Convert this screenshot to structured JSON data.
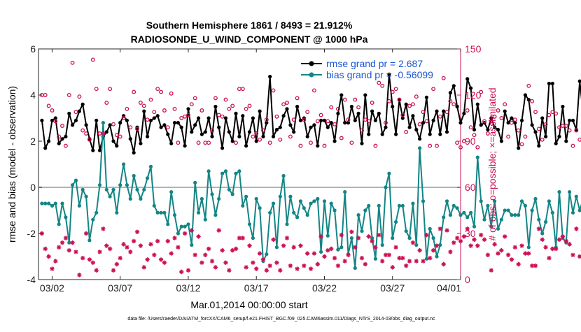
{
  "chart_data": {
    "type": "line",
    "title": "Southern Hemisphere 1861 / 8493 = 21.912%",
    "subtitle": "RADIOSONDE_U_WIND_COMPONENT @ 1000 hPa",
    "xlabel": "Mar.01,2014 00:00:00 start",
    "ylabel": "rmse and bias (model - observation)",
    "ylabel_right": "# of obs: o=possible; ×=assimilated",
    "xlim": [
      1,
      32
    ],
    "ylim": [
      -4,
      6
    ],
    "ylim_right": [
      0,
      150
    ],
    "x_ticks": [
      2,
      7,
      12,
      17,
      22,
      27,
      32
    ],
    "x_tick_labels": [
      "03/02",
      "03/07",
      "03/12",
      "03/17",
      "03/22",
      "03/27",
      "04/01"
    ],
    "y_ticks": [
      -4,
      -2,
      0,
      2,
      4,
      6
    ],
    "y_tick_labels": [
      "-4",
      "-2",
      "0",
      "2",
      "4",
      "6"
    ],
    "y_ticks_right": [
      0,
      30,
      60,
      90,
      120,
      150
    ],
    "y_tick_labels_right": [
      "0",
      "30",
      "60",
      "90",
      "120",
      "150"
    ],
    "zero_line": 0,
    "footnote": "data file: /Users/raeder/DAI/ATM_forcXX/CAM6_setup/f.e21.FHIST_BGC.f09_025.CAM6assim.011/Diags_NTrS_2014-03/obs_diag_output.nc",
    "x_start": 1.25,
    "x_step": 0.25,
    "series": [
      {
        "name": "rmse",
        "legend": "rmse grand pr = 2.687",
        "color": "#000000",
        "marker": "dot",
        "axis": "left",
        "values": [
          2.9,
          1.7,
          2.0,
          2.9,
          3.0,
          1.9,
          2.1,
          2.2,
          3.2,
          2.7,
          2.9,
          3.3,
          3.6,
          2.7,
          2.1,
          1.6,
          2.9,
          1.6,
          2.2,
          2.4,
          2.7,
          2.0,
          1.8,
          2.8,
          3.1,
          2.9,
          2.1,
          1.5,
          2.6,
          1.9,
          3.3,
          2.2,
          2.9,
          3.0,
          3.1,
          2.6,
          2.7,
          2.3,
          1.9,
          2.8,
          2.8,
          2.6,
          1.8,
          3.4,
          2.4,
          2.7,
          3.0,
          2.3,
          2.4,
          3.0,
          2.2,
          3.5,
          2.6,
          1.7,
          3.0,
          2.4,
          2.0,
          3.2,
          2.2,
          3.1,
          1.8,
          2.4,
          3.0,
          2.0,
          3.3,
          2.2,
          2.8,
          4.8,
          2.2,
          2.5,
          2.6,
          3.1,
          3.4,
          2.7,
          2.4,
          3.5,
          2.9,
          3.0,
          2.2,
          2.6,
          2.7,
          1.8,
          2.9,
          2.9,
          2.6,
          2.8,
          2.0,
          3.2,
          4.0,
          2.8,
          2.8,
          3.5,
          2.9,
          3.2,
          1.9,
          4.0,
          2.3,
          3.3,
          2.9,
          3.2,
          2.3,
          2.6,
          4.9,
          3.5,
          2.3,
          3.8,
          3.0,
          3.6,
          2.6,
          3.1,
          2.5,
          2.1,
          2.8,
          3.9,
          2.3,
          2.9,
          3.3,
          2.3,
          3.3,
          2.4,
          4.1,
          4.4,
          3.5,
          2.8,
          3.2,
          4.7,
          4.3,
          2.5,
          3.6,
          2.7,
          2.8,
          2.5,
          3.0,
          2.6,
          2.5,
          2.0,
          3.3,
          2.8,
          3.0,
          2.8,
          1.7,
          2.9,
          4.0,
          3.8,
          2.7,
          2.4,
          1.8,
          3.0,
          2.2,
          4.5,
          4.5,
          1.9,
          2.2,
          3.5,
          2.0,
          2.9,
          2.9,
          2.5,
          4.6,
          3.2,
          2.3,
          3.5,
          2.6,
          1.6,
          3.0,
          2.1,
          2.3,
          2.8,
          2.4,
          3.0,
          1.8,
          1.6,
          2.8,
          5.8
        ]
      },
      {
        "name": "bias",
        "legend": "bias grand pr = -0.56099",
        "color": "#138585",
        "marker": "dot",
        "axis": "left",
        "values": [
          -0.7,
          -0.7,
          -0.7,
          -0.8,
          -0.7,
          -1.6,
          -0.7,
          -1.3,
          -2.4,
          0.1,
          0.3,
          -0.8,
          -0.1,
          -0.4,
          -2.3,
          -1.4,
          -1.1,
          0.1,
          2.8,
          -0.1,
          -0.4,
          -0.1,
          -1.1,
          0.1,
          1.0,
          0.1,
          -0.5,
          0.5,
          -0.1,
          -0.5,
          -0.1,
          0.4,
          0.9,
          -0.8,
          -1.1,
          -1.1,
          -1.1,
          -1.6,
          -0.2,
          -1.2,
          -2.0,
          -1.7,
          -1.7,
          -1.6,
          -2.5,
          0.2,
          -1.1,
          -0.5,
          -1.4,
          0.7,
          -0.3,
          -1.2,
          -0.5,
          0.6,
          0.7,
          -0.1,
          -0.3,
          0.6,
          0.7,
          -0.8,
          -0.4,
          -1.6,
          -2.2,
          -0.5,
          -0.9,
          -3.2,
          -2.9,
          -1.1,
          -0.7,
          -2.6,
          -0.4,
          0.5,
          -1.6,
          -0.4,
          -1.1,
          -1.3,
          -0.6,
          -0.9,
          -1.2,
          -0.7,
          -0.6,
          -0.5,
          -2.8,
          -0.6,
          -2.1,
          -0.7,
          -1.0,
          -2.7,
          -2.6,
          -0.2,
          -2.9,
          -2.2,
          -3.5,
          -1.2,
          -1.9,
          -1.0,
          -0.8,
          -2.2,
          -3.1,
          -0.8,
          -2.5,
          0.0,
          0.6,
          -2.2,
          -1.5,
          -0.8,
          -0.8,
          -1.9,
          -2.2,
          -0.7,
          -2.5,
          1.7,
          -0.6,
          -3.1,
          -1.8,
          -2.2,
          -3.0,
          -2.5,
          -1.3,
          -0.6,
          -1.2,
          -0.8,
          -0.9,
          -1.2,
          -1.1,
          -1.3,
          -1.1,
          -1.7,
          1.3,
          -0.6,
          -1.4,
          -0.8,
          -1.7,
          -0.6,
          -1.8,
          -1.4,
          -1.0,
          -1.0,
          -1.2,
          -1.2,
          -1.2,
          -0.6,
          -0.8,
          -2.6,
          -1.0,
          -0.5,
          -1.4,
          -2.0,
          -1.5,
          -0.6,
          -1.1,
          -2.6,
          -0.2,
          -2.2,
          -2.4,
          -0.2,
          -1.1,
          -0.4,
          -1.0,
          -0.5,
          -0.9,
          -2.6,
          -0.2,
          -2.3,
          -1.0,
          -0.4,
          -0.3,
          0.6,
          -1.2,
          -0.3,
          -0.2,
          -0.6,
          -0.7,
          -0.9,
          1.2,
          -2.4,
          1.4,
          -1.0
        ]
      },
      {
        "name": "possible",
        "color": "#cc1155",
        "marker": "circle",
        "axis": "right",
        "values": [
          120,
          120,
          113,
          110,
          103,
          93,
          100,
          87,
          120,
          141,
          109,
          119,
          97,
          95,
          91,
          143,
          124,
          95,
          95,
          115,
          124,
          101,
          94,
          93,
          105,
          111,
          99,
          122,
          98,
          115,
          113,
          104,
          117,
          109,
          124,
          122,
          110,
          99,
          121,
          111,
          89,
          105,
          106,
          107,
          114,
          118,
          89,
          110,
          89,
          89,
          97,
          118,
          107,
          106,
          117,
          111,
          113,
          89,
          124,
          124,
          111,
          113,
          93,
          95,
          91,
          97,
          104,
          89,
          123,
          106,
          91,
          114,
          115,
          93,
          104,
          118,
          87,
          104,
          109,
          89,
          123,
          103,
          107,
          87,
          103,
          112,
          101,
          111,
          92,
          117,
          104,
          89,
          117,
          112,
          97,
          104,
          103,
          115,
          87,
          128,
          126,
          102,
          116,
          122,
          124,
          117,
          107,
          96,
          113,
          114,
          119,
          101,
          109,
          103,
          87,
          124,
          87,
          106,
          131,
          109,
          116,
          114,
          89,
          86,
          90,
          110,
          99,
          94,
          86,
          122,
          103,
          95,
          103,
          106,
          110,
          105,
          114,
          93,
          102,
          104,
          97,
          88,
          93,
          126,
          116,
          109,
          98,
          91,
          101,
          107,
          109,
          108,
          99,
          100,
          100,
          97,
          87,
          97,
          91,
          122,
          89,
          116,
          100,
          108,
          103,
          108,
          97,
          99,
          104,
          109,
          104,
          92
        ]
      },
      {
        "name": "assimilated",
        "color": "#cc1155",
        "marker": "asterisk",
        "axis": "right",
        "values": [
          30,
          20,
          15,
          7,
          12,
          21,
          24,
          27,
          19,
          24,
          18,
          3,
          14,
          30,
          13,
          11,
          6,
          18,
          33,
          22,
          20,
          6,
          10,
          14,
          23,
          21,
          18,
          25,
          31,
          22,
          8,
          13,
          23,
          16,
          25,
          13,
          11,
          25,
          17,
          27,
          21,
          5,
          30,
          6,
          32,
          16,
          28,
          11,
          16,
          20,
          12,
          8,
          32,
          19,
          11,
          6,
          19,
          20,
          27,
          27,
          8,
          22,
          11,
          7,
          17,
          13,
          6,
          9,
          26,
          11,
          6,
          22,
          27,
          9,
          21,
          7,
          22,
          9,
          17,
          7,
          17,
          10,
          28,
          15,
          19,
          20,
          14,
          9,
          29,
          12,
          16,
          31,
          21,
          27,
          14,
          10,
          28,
          25,
          21,
          29,
          12,
          16,
          16,
          8,
          21,
          14,
          14,
          9,
          12,
          24,
          12,
          19,
          12,
          29,
          14,
          19,
          22,
          33,
          10,
          32,
          18,
          24,
          27,
          25,
          28,
          33,
          22,
          26,
          22,
          29,
          26,
          16,
          6,
          23,
          17,
          19,
          28,
          16,
          13,
          21,
          10,
          22,
          17,
          17,
          9,
          9,
          33,
          26,
          21,
          14,
          20,
          20,
          26,
          28,
          25,
          23,
          16,
          33,
          15,
          19,
          16,
          23,
          25,
          16,
          22,
          28,
          16,
          20,
          34,
          24,
          14,
          25
        ]
      }
    ]
  }
}
